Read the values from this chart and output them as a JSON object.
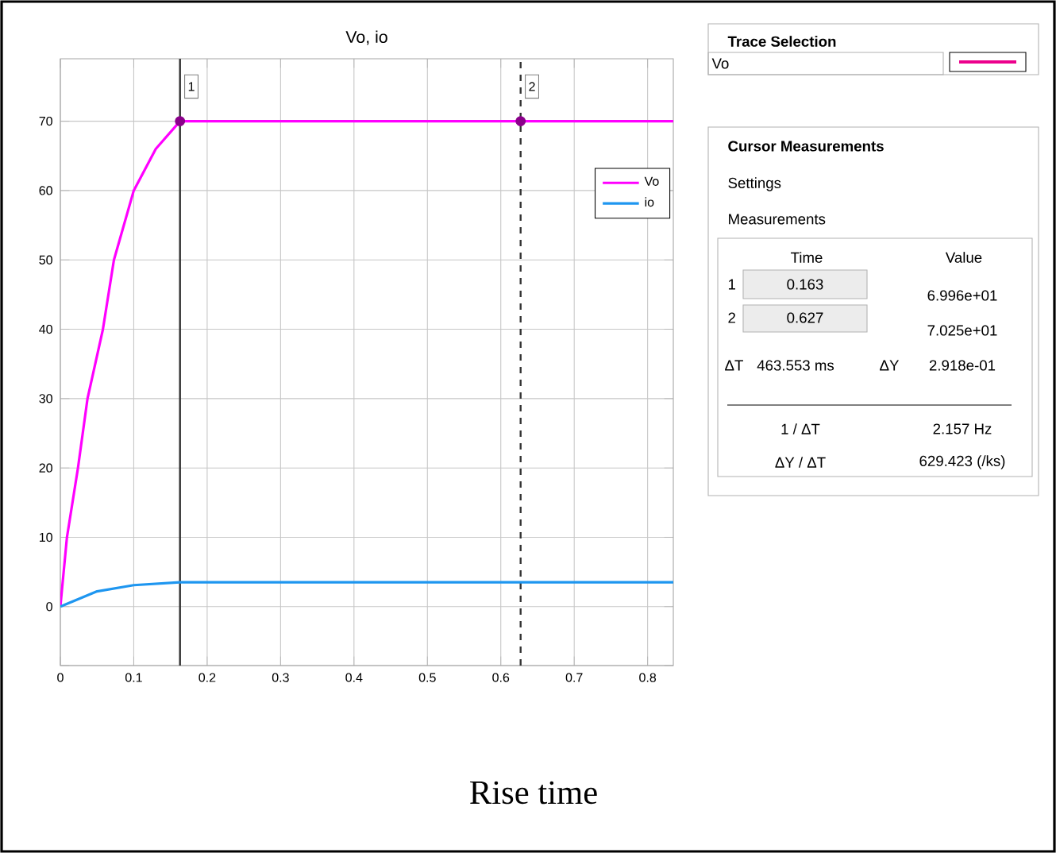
{
  "chart_data": {
    "type": "line",
    "title": "Vo, io",
    "xlim": [
      0,
      0.835
    ],
    "ylim": [
      -8.5,
      79
    ],
    "xticks": [
      0,
      0.1,
      0.2,
      0.3,
      0.4,
      0.5,
      0.6,
      0.7,
      0.8
    ],
    "yticks": [
      {
        "value": -8.5,
        "label": null
      },
      0,
      10,
      20,
      30,
      40,
      50,
      60,
      70
    ],
    "grid": true,
    "legend": "top right",
    "series": [
      {
        "name": "Vo",
        "color": "#ff00ff",
        "x": [
          0,
          0.009,
          0.024,
          0.037,
          0.058,
          0.073,
          0.1,
          0.13,
          0.163,
          0.627,
          0.835
        ],
        "values": [
          0,
          10,
          20,
          30,
          40,
          50,
          60,
          66,
          70,
          70,
          70
        ]
      },
      {
        "name": "io",
        "color": "#1e96f0",
        "x": [
          0,
          0.05,
          0.1,
          0.163,
          0.835
        ],
        "values": [
          0,
          2.2,
          3.1,
          3.5,
          3.5
        ]
      },
      {
        "type": "scatter",
        "marker": "circle",
        "color": "#8b008b",
        "x": [
          0.163,
          0.627
        ],
        "values": [
          70,
          70
        ]
      }
    ],
    "ref_lines": [
      {
        "axis": "x",
        "value": 0.163,
        "line_style": "solid",
        "color": "#333333"
      },
      {
        "axis": "x",
        "value": 0.627,
        "line_style": "dashed",
        "color": "#333333"
      }
    ],
    "annotations": [
      "Rise time",
      "Trace Selection",
      "Vo",
      "Cursor Measurements",
      "Settings",
      "Measurements",
      "Time",
      "Value",
      "1",
      "0.163",
      "6.996e+01",
      "2",
      "0.627",
      "7.025e+01",
      "ΔT",
      "463.553 ms",
      "ΔY",
      "2.918e-01",
      "1 / ΔT",
      "2.157 Hz",
      "ΔY / ΔT",
      "629.423 (/ks)",
      {
        "text": "1",
        "x": 0.163,
        "y": 75
      },
      {
        "text": "2",
        "x": 0.627,
        "y": 75
      }
    ]
  }
}
